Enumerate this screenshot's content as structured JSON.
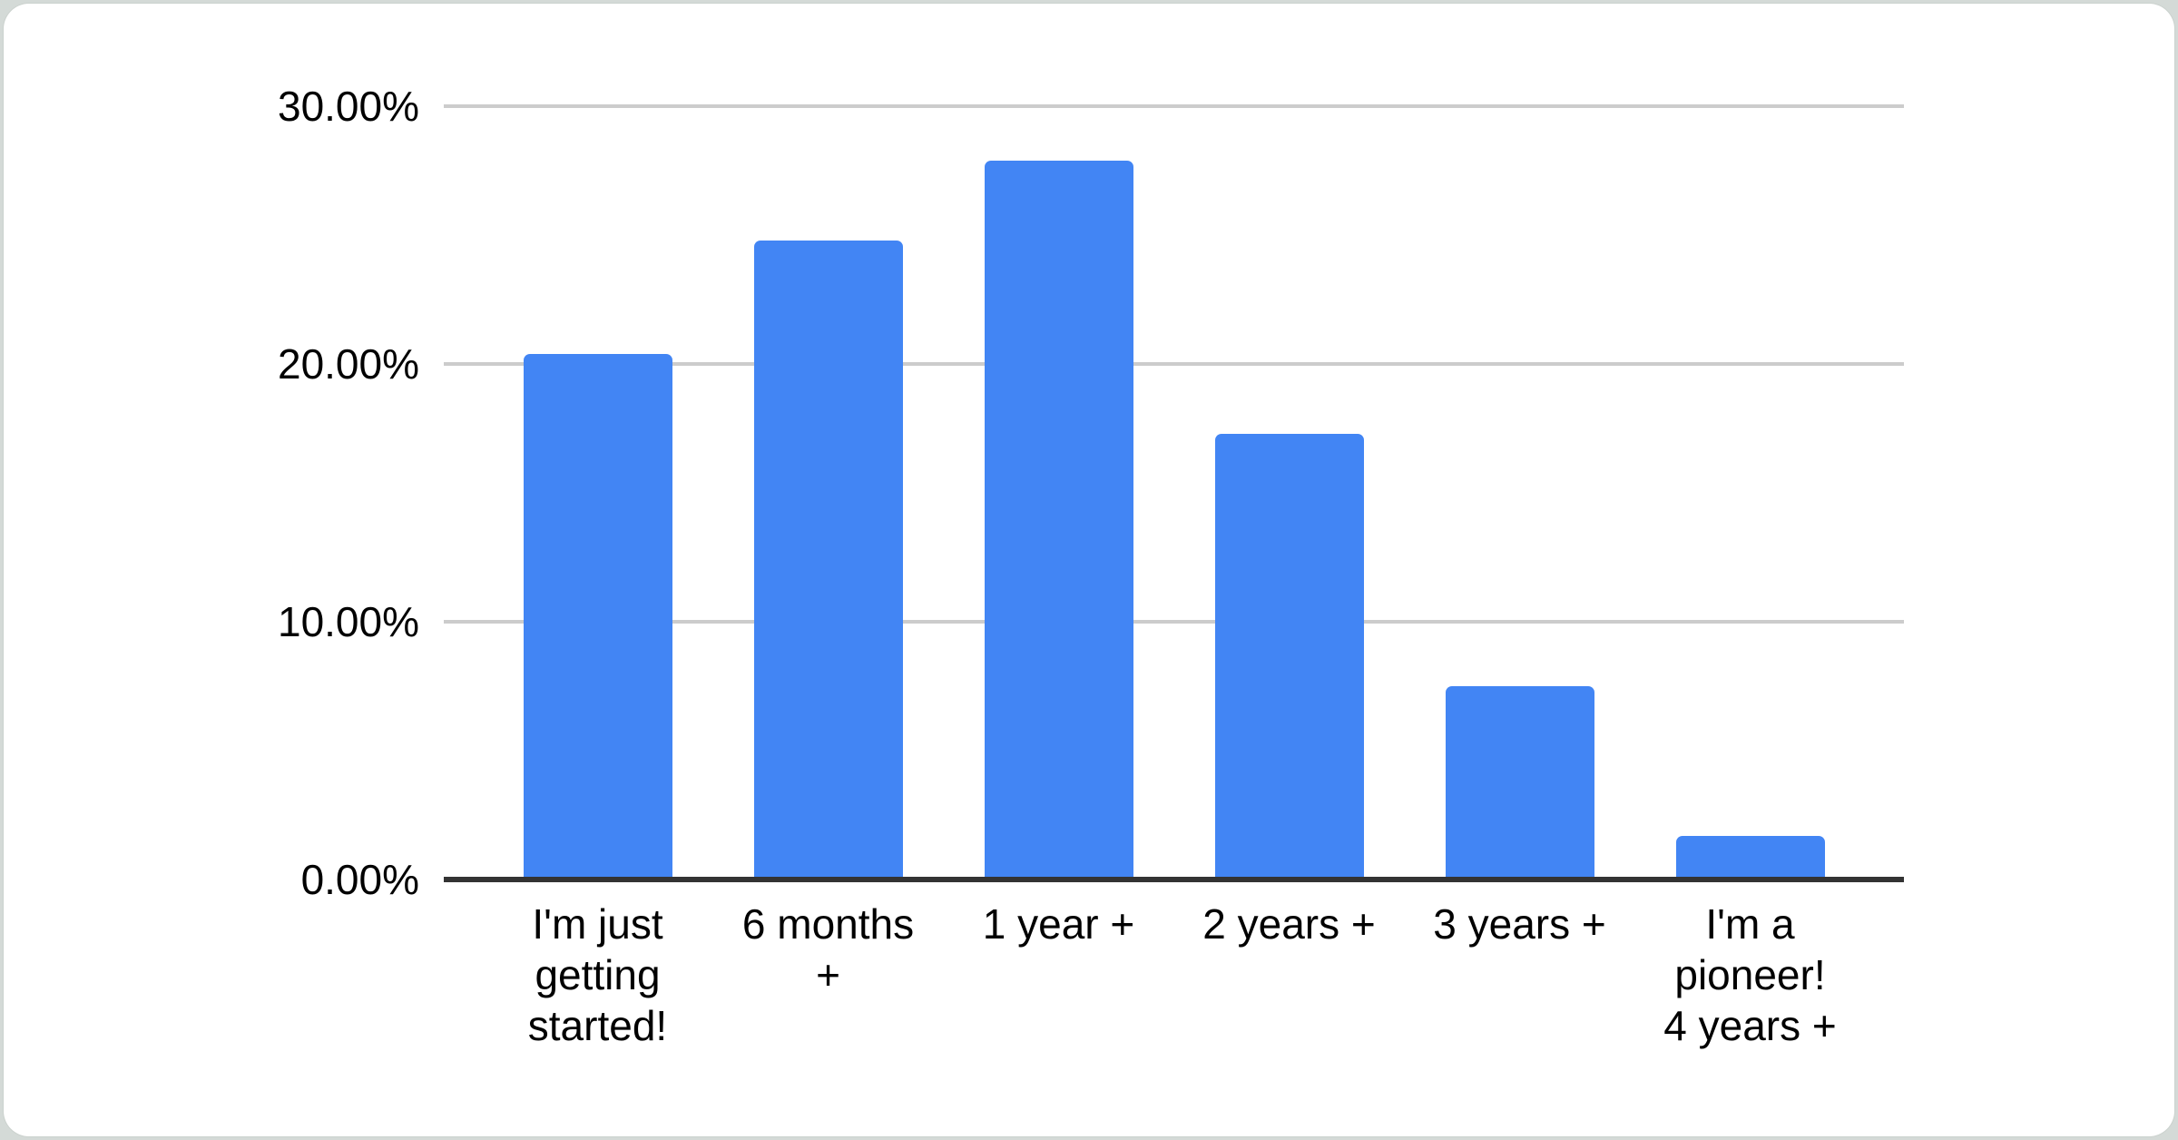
{
  "chart_data": {
    "type": "bar",
    "categories": [
      "I'm just getting started!",
      "6 months +",
      "1 year +",
      "2 years +",
      "3 years +",
      "I'm a pioneer! 4 years +"
    ],
    "category_lines": [
      [
        "I'm just",
        "getting",
        "started!"
      ],
      [
        "6 months",
        "+"
      ],
      [
        "1 year +"
      ],
      [
        "2 years +"
      ],
      [
        "3 years +"
      ],
      [
        "I'm a",
        "pioneer!",
        "4 years +"
      ]
    ],
    "values": [
      20.4,
      24.8,
      27.9,
      17.3,
      7.5,
      1.7
    ],
    "title": "",
    "xlabel": "",
    "ylabel": "",
    "ylim": [
      0,
      30
    ],
    "yticks": [
      30,
      20,
      10,
      0
    ],
    "ytick_labels": [
      "30.00%",
      "20.00%",
      "10.00%",
      "0.00%"
    ],
    "grid": true,
    "legend": false,
    "bar_color": "#4285F4",
    "gridline_color": "#cccccc",
    "axis_color": "#333333",
    "label_color": "#000000",
    "card_color": "#ffffff",
    "page_background": "#d4dad7"
  }
}
